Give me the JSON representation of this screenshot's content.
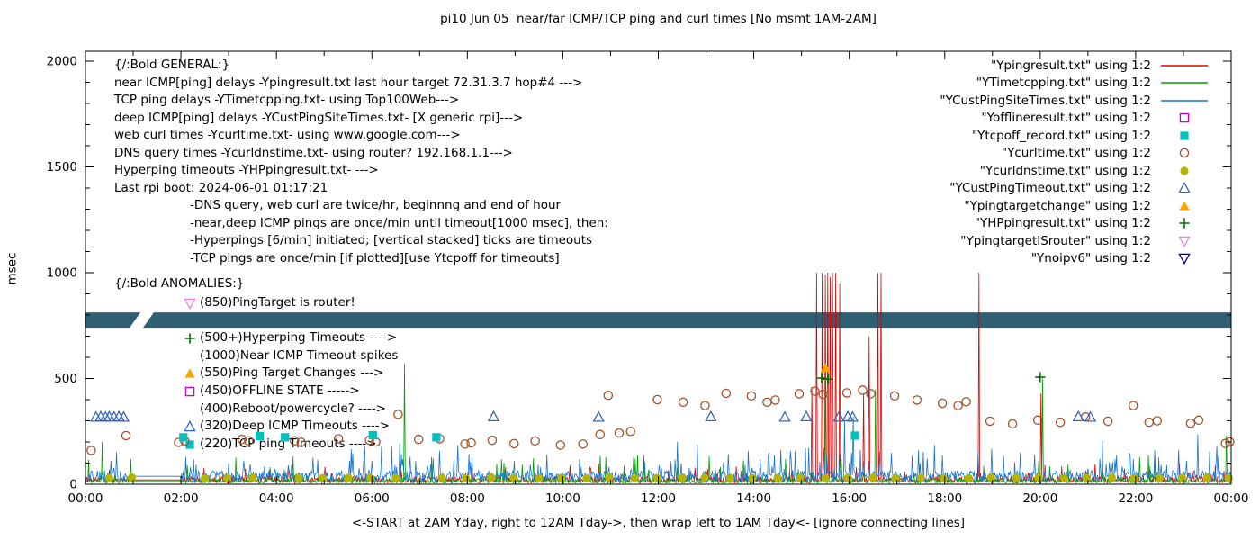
{
  "title": "pi10 Jun 05  near/far ICMP/TCP ping and curl times [No msmt 1AM-2AM]",
  "axes": {
    "ylabel": "msec",
    "xlabel": "<-START at 2AM Yday, right to 12AM Tday->, then wrap left to 1AM Tday<- [ignore connecting lines]",
    "yticks": [
      0,
      500,
      1000,
      1500,
      2000
    ],
    "xticks": [
      "00:00",
      "02:00",
      "04:00",
      "06:00",
      "08:00",
      "10:00",
      "12:00",
      "14:00",
      "16:00",
      "18:00",
      "20:00",
      "22:00",
      "00:00"
    ],
    "ylim": [
      0,
      2000
    ]
  },
  "legend": [
    {
      "label": "\"Ypingresult.txt\" using 1:2",
      "marker": "line",
      "color": "#dd0000",
      "icon": "red-line"
    },
    {
      "label": "\"YTimetcpping.txt\" using 1:2",
      "marker": "line",
      "color": "#00a000",
      "icon": "green-line"
    },
    {
      "label": "\"YCustPingSiteTimes.txt\" using 1:2",
      "marker": "line",
      "color": "#1874cd",
      "icon": "blue-line"
    },
    {
      "label": "\"Yofflineresult.txt\" using 1:2",
      "marker": "sq-open",
      "color": "#cc00cc",
      "icon": "magenta-open-square"
    },
    {
      "label": "\"Ytcpoff_record.txt\" using 1:2",
      "marker": "sq-fill",
      "color": "#00c0c0",
      "icon": "cyan-filled-square"
    },
    {
      "label": "\"Ycurltime.txt\" using 1:2",
      "marker": "circ-open",
      "color": "#a0522d",
      "icon": "brown-open-circle"
    },
    {
      "label": "\"Ycurldnstime.txt\" using 1:2",
      "marker": "circ-fill",
      "color": "#b5b500",
      "icon": "olive-filled-circle"
    },
    {
      "label": "\"YCustPingTimeout.txt\" using 1:2",
      "marker": "tri-open",
      "color": "#3465c0",
      "icon": "blue-open-triangle"
    },
    {
      "label": "\"Ypingtargetchange\" using 1:2",
      "marker": "tri-fill",
      "color": "#ffa500",
      "icon": "orange-filled-triangle"
    },
    {
      "label": "\"YHPpingresult.txt\" using 1:2",
      "marker": "plus",
      "color": "#007000",
      "icon": "green-plus"
    },
    {
      "label": "\"YpingtargetISrouter\" using 1:2",
      "marker": "tridown-open",
      "color": "#ee82ee",
      "icon": "violet-open-triangle-down"
    },
    {
      "label": "\"Ynoipv6\" using 1:2",
      "marker": "tridown-open",
      "color": "#000080",
      "icon": "navy-open-triangle-down"
    }
  ],
  "annotations": {
    "general": [
      {
        "text": "{/:Bold GENERAL:}",
        "indent": 0
      },
      {
        "text": "near ICMP[ping] delays -Ypingresult.txt last hour target 72.31.3.7 hop#4 --->",
        "indent": 0
      },
      {
        "text": "TCP ping delays -YTimetcpping.txt- using Top100Web--->",
        "indent": 0
      },
      {
        "text": "deep ICMP[ping] delays -YCustPingSiteTimes.txt- [X generic rpi]--->",
        "indent": 0
      },
      {
        "text": "web curl times -Ycurltime.txt- using www.google.com--->",
        "indent": 0
      },
      {
        "text": "DNS query times -Ycurldnstime.txt- using router? 192.168.1.1--->",
        "indent": 0
      },
      {
        "text": "Hyperping timeouts -YHPpingresult.txt- --->",
        "indent": 0
      },
      {
        "text": "Last rpi boot: 2024-06-01 01:17:21",
        "indent": 0
      },
      {
        "text": "-DNS query, web curl are twice/hr, beginnng and end of hour",
        "indent": 1
      },
      {
        "text": "-near,deep ICMP pings are once/min until timeout[1000 msec], then:",
        "indent": 1
      },
      {
        "text": "-Hyperpings [6/min] initiated; [vertical stacked] ticks are timeouts",
        "indent": 1
      },
      {
        "text": "-TCP pings are once/min [if plotted][use Ytcpoff for timeouts]",
        "indent": 1
      }
    ],
    "anomalies_title": "{/:Bold ANOMALIES:}",
    "anomalies": [
      {
        "marker": "tridown-open",
        "color": "#ee82ee",
        "text": "(850)PingTarget is router!"
      },
      {
        "marker": "",
        "color": "",
        "text": ""
      },
      {
        "marker": "plus",
        "color": "#007000",
        "text": "(500+)Hyperping Timeouts ---->"
      },
      {
        "marker": "",
        "color": "",
        "text": "(1000)Near ICMP Timeout spikes"
      },
      {
        "marker": "tri-fill",
        "color": "#ffa500",
        "text": "(550)Ping Target Changes --->"
      },
      {
        "marker": "sq-open",
        "color": "#cc00cc",
        "text": "(450)OFFLINE STATE ----->"
      },
      {
        "marker": "",
        "color": "",
        "text": "(400)Reboot/powercycle? ---->"
      },
      {
        "marker": "tri-open",
        "color": "#3465c0",
        "text": "(320)Deep ICMP Timeouts ---->"
      },
      {
        "marker": "sq-fill",
        "color": "#00c0c0",
        "text": "(220)TCP ping Timeouts ---->"
      }
    ]
  },
  "chart_data": {
    "type": "line",
    "title": "pi10 Jun 05  near/far ICMP/TCP ping and curl times [No msmt 1AM-2AM]",
    "xlabel": "<-START at 2AM Yday, right to 12AM Tday->, then wrap left to 1AM Tday<- [ignore connecting lines]",
    "ylabel": "msec",
    "x_hours": [
      0,
      24
    ],
    "ylim": [
      0,
      2000
    ],
    "grid": false,
    "legend_position": "top-right",
    "band": {
      "name": "Ynoipv6",
      "color": "#2e5f73",
      "y_from": 740,
      "y_to": 812,
      "gap_x": [
        1.02,
        1.3
      ]
    },
    "series": [
      {
        "name": "Ypingresult-near-icmp",
        "color": "#dd0000",
        "seed": 11,
        "baseline": {
          "min": 6,
          "typ": 30,
          "burst": 70,
          "burst_p": 0.05
        },
        "spikes": [
          [
            15.22,
            460
          ],
          [
            15.32,
            1000
          ],
          [
            15.43,
            1000
          ],
          [
            15.5,
            990
          ],
          [
            15.55,
            1000
          ],
          [
            15.6,
            980
          ],
          [
            15.65,
            1000
          ],
          [
            15.72,
            1000
          ],
          [
            15.8,
            950
          ],
          [
            16.3,
            430
          ],
          [
            16.42,
            700
          ],
          [
            16.6,
            1000
          ],
          [
            16.67,
            1000
          ],
          [
            18.72,
            1000
          ],
          [
            20.02,
            430
          ]
        ]
      },
      {
        "name": "YTimetcpping-tcp-ping",
        "color": "#00a000",
        "seed": 23,
        "baseline": {
          "min": 5,
          "typ": 22,
          "burst": 130,
          "burst_p": 0.03
        },
        "spikes": [
          [
            0.35,
            200
          ],
          [
            6.68,
            570
          ],
          [
            15.5,
            500
          ],
          [
            16.55,
            450
          ],
          [
            20.05,
            500
          ],
          [
            23.9,
            230
          ]
        ]
      },
      {
        "name": "YCustPingSiteTimes-deep-icmp",
        "color": "#1874cd",
        "seed": 37,
        "baseline": {
          "min": 10,
          "typ": 55,
          "burst": 130,
          "burst_p": 0.12
        },
        "spikes": [
          [
            7.8,
            185
          ],
          [
            12.4,
            200
          ],
          [
            15.9,
            300
          ],
          [
            16.08,
            320
          ],
          [
            21.3,
            210
          ],
          [
            23.3,
            235
          ]
        ]
      }
    ],
    "scatter": [
      {
        "name": "Ycurltime-web-curl",
        "marker": "circ-open",
        "color": "#a0522d",
        "points": [
          [
            0.12,
            160
          ],
          [
            0.85,
            230
          ],
          [
            1.95,
            198
          ],
          [
            2.08,
            205
          ],
          [
            3.28,
            212
          ],
          [
            3.42,
            205
          ],
          [
            4.38,
            205
          ],
          [
            4.52,
            198
          ],
          [
            5.3,
            215
          ],
          [
            5.95,
            208
          ],
          [
            6.08,
            200
          ],
          [
            6.55,
            330
          ],
          [
            6.98,
            212
          ],
          [
            7.42,
            215
          ],
          [
            7.95,
            190
          ],
          [
            8.08,
            196
          ],
          [
            8.52,
            208
          ],
          [
            8.98,
            192
          ],
          [
            9.42,
            205
          ],
          [
            9.95,
            185
          ],
          [
            10.42,
            190
          ],
          [
            10.78,
            235
          ],
          [
            10.95,
            420
          ],
          [
            11.18,
            242
          ],
          [
            11.42,
            250
          ],
          [
            11.98,
            400
          ],
          [
            12.52,
            388
          ],
          [
            12.98,
            372
          ],
          [
            13.42,
            430
          ],
          [
            13.95,
            418
          ],
          [
            14.28,
            388
          ],
          [
            14.45,
            398
          ],
          [
            14.95,
            428
          ],
          [
            15.28,
            440
          ],
          [
            15.45,
            425
          ],
          [
            15.95,
            432
          ],
          [
            16.28,
            445
          ],
          [
            16.45,
            428
          ],
          [
            16.95,
            418
          ],
          [
            17.42,
            398
          ],
          [
            17.95,
            383
          ],
          [
            18.28,
            372
          ],
          [
            18.45,
            390
          ],
          [
            18.95,
            298
          ],
          [
            19.42,
            285
          ],
          [
            19.95,
            303
          ],
          [
            20.42,
            293
          ],
          [
            20.95,
            318
          ],
          [
            21.42,
            298
          ],
          [
            21.95,
            372
          ],
          [
            22.28,
            293
          ],
          [
            22.45,
            300
          ],
          [
            23.15,
            288
          ],
          [
            23.32,
            303
          ],
          [
            23.88,
            193
          ],
          [
            23.97,
            200
          ]
        ]
      },
      {
        "name": "Ycurldnstime-dns-query",
        "marker": "circ-fill",
        "color": "#b5b500",
        "points": [
          [
            0.5,
            30
          ],
          [
            0.97,
            32
          ],
          [
            2.5,
            28
          ],
          [
            2.97,
            30
          ],
          [
            3.5,
            31
          ],
          [
            4.47,
            30
          ],
          [
            4.97,
            29
          ],
          [
            5.5,
            30
          ],
          [
            5.97,
            31
          ],
          [
            6.5,
            28
          ],
          [
            7.47,
            30
          ],
          [
            7.97,
            29
          ],
          [
            8.5,
            32
          ],
          [
            8.97,
            30
          ],
          [
            9.5,
            29
          ],
          [
            9.97,
            30
          ],
          [
            10.5,
            28
          ],
          [
            10.97,
            31
          ],
          [
            11.5,
            30
          ],
          [
            11.97,
            29
          ],
          [
            12.5,
            30
          ],
          [
            12.97,
            31
          ],
          [
            13.5,
            30
          ],
          [
            13.97,
            29
          ],
          [
            14.5,
            30
          ],
          [
            14.97,
            31
          ],
          [
            15.5,
            28
          ],
          [
            15.97,
            30
          ],
          [
            16.5,
            31
          ],
          [
            16.97,
            29
          ],
          [
            17.5,
            30
          ],
          [
            17.97,
            30
          ],
          [
            18.5,
            29
          ],
          [
            18.97,
            31
          ],
          [
            19.5,
            30
          ],
          [
            19.97,
            32
          ],
          [
            20.5,
            29
          ],
          [
            20.97,
            30
          ],
          [
            21.5,
            31
          ],
          [
            21.97,
            29
          ],
          [
            22.5,
            30
          ],
          [
            22.97,
            30
          ],
          [
            23.5,
            31
          ],
          [
            23.95,
            30
          ]
        ]
      },
      {
        "name": "YCustPingTimeout-deep-icmp-timeouts",
        "marker": "tri-open",
        "color": "#3465c0",
        "points": [
          [
            0.22,
            318
          ],
          [
            0.32,
            320
          ],
          [
            0.42,
            318
          ],
          [
            0.5,
            320
          ],
          [
            0.6,
            318
          ],
          [
            0.7,
            320
          ],
          [
            0.8,
            318
          ],
          [
            8.55,
            320
          ],
          [
            10.75,
            318
          ],
          [
            13.1,
            320
          ],
          [
            14.65,
            318
          ],
          [
            15.1,
            320
          ],
          [
            15.78,
            318
          ],
          [
            15.97,
            320
          ],
          [
            16.07,
            318
          ],
          [
            20.8,
            320
          ],
          [
            21.05,
            318
          ]
        ]
      },
      {
        "name": "Ytcpoff-tcp-ping-timeouts",
        "marker": "sq-fill",
        "color": "#00c0c0",
        "points": [
          [
            2.05,
            222
          ],
          [
            3.65,
            228
          ],
          [
            4.18,
            222
          ],
          [
            6.02,
            232
          ],
          [
            7.35,
            222
          ],
          [
            16.12,
            230
          ]
        ]
      },
      {
        "name": "YHPpingresult-hyperping-timeouts",
        "marker": "plus",
        "color": "#007000",
        "points": [
          [
            15.42,
            502
          ],
          [
            15.56,
            497
          ],
          [
            20.0,
            506
          ]
        ]
      },
      {
        "name": "Ypingtargetchange-events",
        "marker": "tri-fill",
        "color": "#ffa500",
        "points": [
          [
            15.5,
            550
          ]
        ]
      }
    ]
  }
}
